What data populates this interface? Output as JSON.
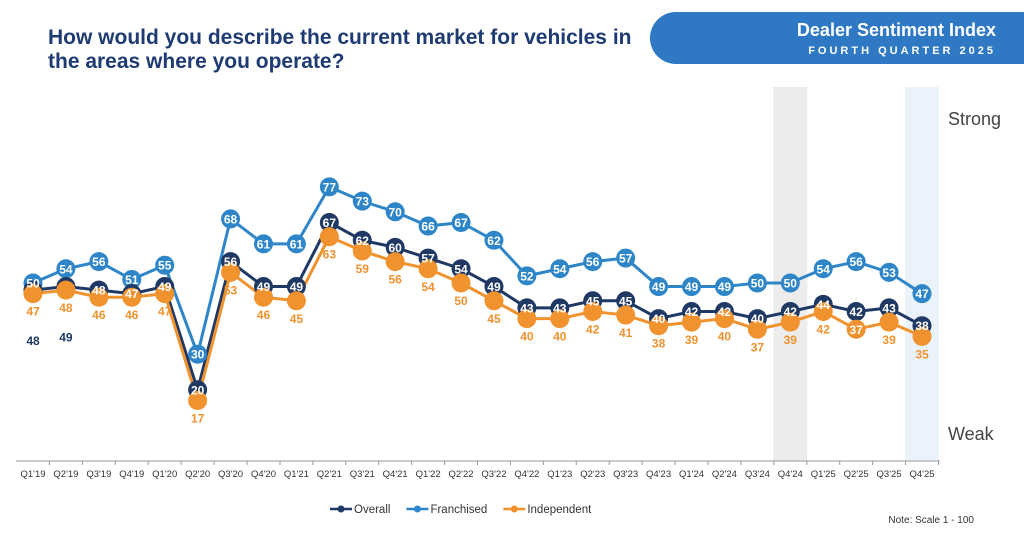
{
  "header": {
    "question": "How would you describe the current market for vehicles in the areas where you operate?",
    "banner_title": "Dealer Sentiment Index",
    "banner_subtitle": "FOURTH QUARTER 2025"
  },
  "note": "Note: Scale 1 - 100",
  "colors": {
    "overall": "#1f3864",
    "franchised": "#2e86c8",
    "independent": "#f0922e",
    "banner": "#2f78c4",
    "highlight_prev": "#ececec",
    "highlight_current": "#eaf2fb"
  },
  "chart_data": {
    "type": "line",
    "ylim": [
      0,
      100
    ],
    "grid": false,
    "legend_placement": "bottom",
    "y_annotations": {
      "top": "Strong",
      "bottom": "Weak"
    },
    "highlighted_categories": [
      "Q4'24",
      "Q4'25"
    ],
    "categories": [
      "Q1'19",
      "Q2'19",
      "Q3'19",
      "Q4'19",
      "Q1'20",
      "Q2'20",
      "Q3'20",
      "Q4'20",
      "Q1'21",
      "Q2'21",
      "Q3'21",
      "Q4'21",
      "Q1'22",
      "Q2'22",
      "Q3'22",
      "Q4'22",
      "Q1'23",
      "Q2'23",
      "Q3'23",
      "Q4'23",
      "Q1'24",
      "Q2'24",
      "Q3'24",
      "Q4'24",
      "Q1'25",
      "Q2'25",
      "Q3'25",
      "Q4'25"
    ],
    "series": [
      {
        "name": "Overall",
        "values": [
          48,
          49,
          48,
          47,
          49,
          20,
          56,
          49,
          49,
          67,
          62,
          60,
          57,
          54,
          49,
          43,
          43,
          45,
          45,
          40,
          42,
          42,
          40,
          42,
          44,
          42,
          43,
          38
        ]
      },
      {
        "name": "Franchised",
        "values": [
          50,
          54,
          56,
          51,
          55,
          30,
          68,
          61,
          61,
          77,
          73,
          70,
          66,
          67,
          62,
          52,
          54,
          56,
          57,
          49,
          49,
          49,
          50,
          50,
          54,
          56,
          53,
          47
        ]
      },
      {
        "name": "Independent",
        "values": [
          47,
          48,
          46,
          46,
          47,
          17,
          53,
          46,
          45,
          63,
          59,
          56,
          54,
          50,
          45,
          40,
          40,
          42,
          41,
          38,
          39,
          40,
          37,
          39,
          42,
          37,
          39,
          35
        ]
      }
    ]
  }
}
